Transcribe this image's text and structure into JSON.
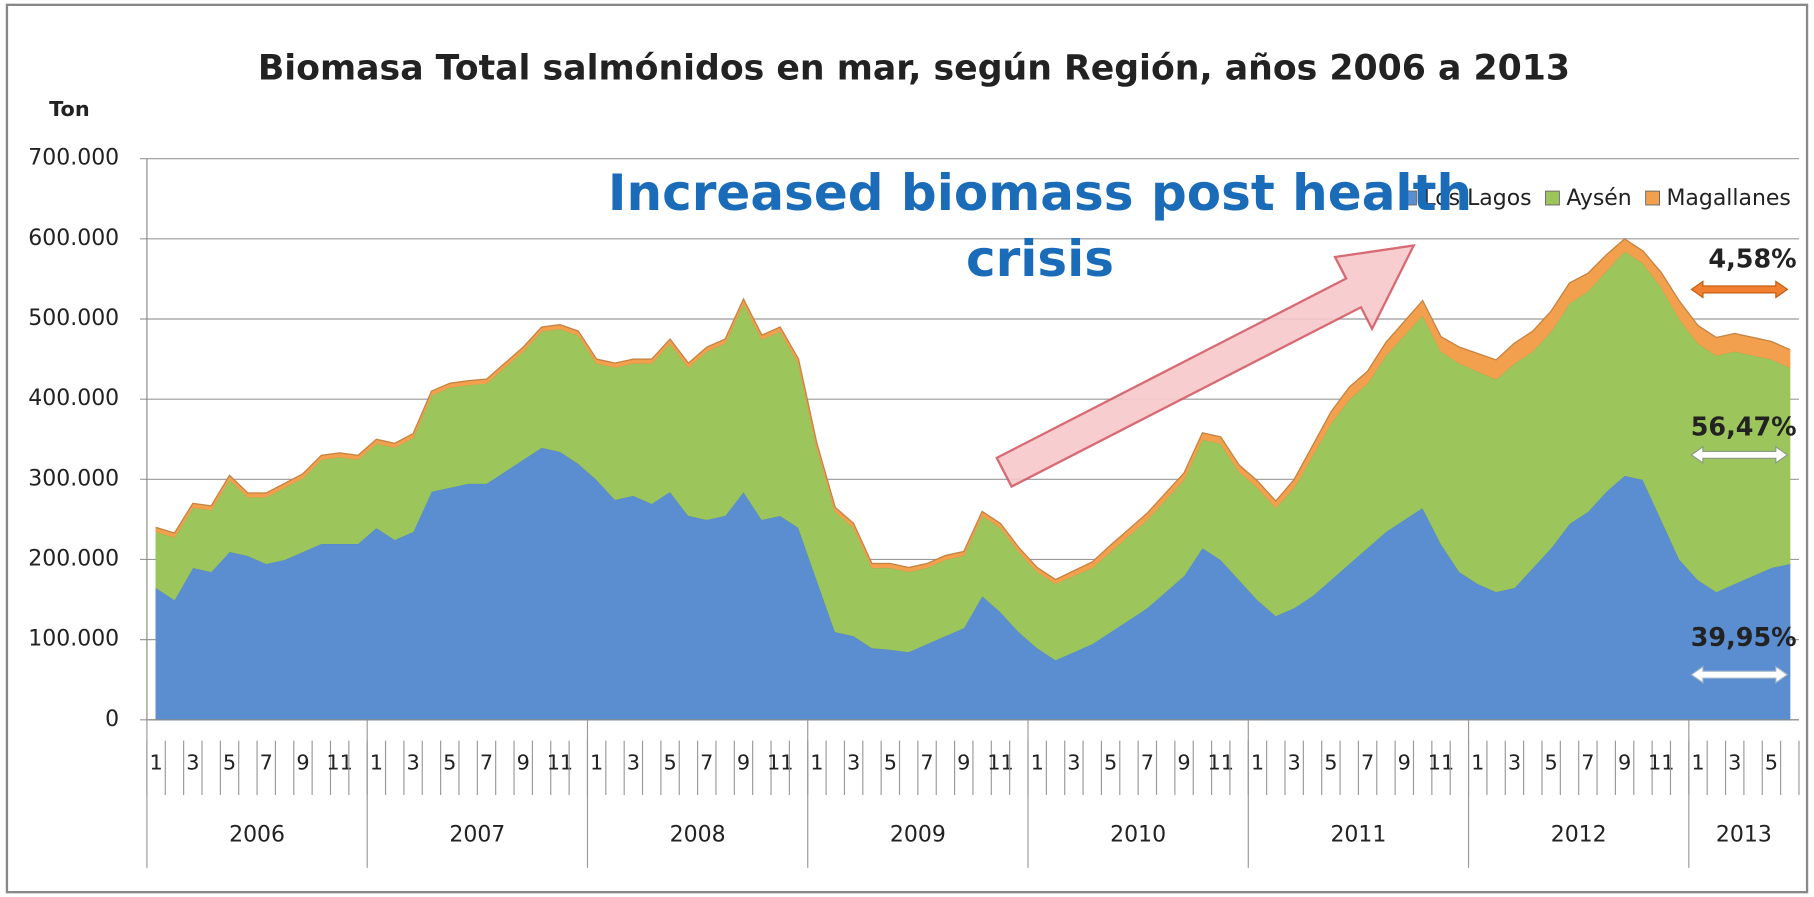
{
  "chart_data": {
    "type": "stacked_area",
    "title": "Biomasa Total salmónidos en mar, según Región, años 2006 a 2013",
    "y_label": "Ton",
    "categories": [
      "1",
      null,
      "3",
      null,
      "5",
      null,
      "7",
      null,
      "9",
      null,
      "11",
      null,
      "1",
      null,
      "3",
      null,
      "5",
      null,
      "7",
      null,
      "9",
      null,
      "11",
      null,
      "1",
      null,
      "3",
      null,
      "5",
      null,
      "7",
      null,
      "9",
      null,
      "11",
      null,
      "1",
      null,
      "3",
      null,
      "5",
      null,
      "7",
      null,
      "9",
      null,
      "11",
      null,
      "1",
      null,
      "3",
      null,
      "5",
      null,
      "7",
      null,
      "9",
      null,
      "11",
      null,
      "1",
      null,
      "3",
      null,
      "5",
      null,
      "7",
      null,
      "9",
      null,
      "11",
      null,
      "1",
      null,
      "3",
      null,
      "5",
      null,
      "7",
      null,
      "9",
      null,
      "11",
      null,
      "1",
      null,
      "3",
      null,
      "5",
      null
    ],
    "years": [
      "2006",
      "2007",
      "2008",
      "2009",
      "2010",
      "2011",
      "2012",
      "2013"
    ],
    "series": [
      {
        "name": "Los Lagos",
        "color": "#5b8ed1",
        "values": [
          165000,
          150000,
          190000,
          185000,
          210000,
          205000,
          195000,
          200000,
          210000,
          220000,
          220000,
          220000,
          240000,
          225000,
          235000,
          285000,
          290000,
          295000,
          295000,
          310000,
          325000,
          340000,
          335000,
          320000,
          300000,
          275000,
          280000,
          270000,
          285000,
          255000,
          250000,
          255000,
          285000,
          250000,
          255000,
          240000,
          175000,
          110000,
          105000,
          90000,
          88000,
          85000,
          95000,
          105000,
          115000,
          155000,
          135000,
          110000,
          90000,
          75000,
          85000,
          95000,
          110000,
          125000,
          140000,
          160000,
          180000,
          215000,
          200000,
          175000,
          150000,
          130000,
          140000,
          155000,
          175000,
          195000,
          215000,
          235000,
          250000,
          265000,
          220000,
          185000,
          170000,
          160000,
          165000,
          190000,
          215000,
          245000,
          260000,
          285000,
          305000,
          300000,
          250000,
          200000,
          175000,
          160000,
          170000,
          180000,
          190000,
          195000
        ]
      },
      {
        "name": "Aysén",
        "color": "#9cc65b",
        "values": [
          70000,
          78000,
          75000,
          77000,
          90000,
          73000,
          83000,
          90000,
          92000,
          105000,
          108000,
          105000,
          105000,
          115000,
          117000,
          120000,
          125000,
          123000,
          125000,
          130000,
          135000,
          145000,
          153000,
          160000,
          145000,
          165000,
          165000,
          175000,
          185000,
          185000,
          210000,
          215000,
          235000,
          225000,
          230000,
          205000,
          165000,
          150000,
          135000,
          100000,
          102000,
          100000,
          95000,
          95000,
          90000,
          100000,
          105000,
          100000,
          95000,
          95000,
          95000,
          95000,
          100000,
          105000,
          110000,
          115000,
          120000,
          135000,
          145000,
          135000,
          140000,
          135000,
          150000,
          175000,
          195000,
          205000,
          205000,
          220000,
          230000,
          240000,
          240000,
          260000,
          265000,
          265000,
          280000,
          270000,
          270000,
          275000,
          275000,
          275000,
          280000,
          270000,
          290000,
          300000,
          295000,
          295000,
          290000,
          275000,
          260000,
          245000
        ]
      },
      {
        "name": "Magallanes",
        "color": "#f2a04e",
        "values": [
          5000,
          5000,
          5000,
          5000,
          5000,
          5000,
          5000,
          5000,
          5000,
          5000,
          5000,
          5000,
          5000,
          5000,
          5000,
          5000,
          5000,
          5000,
          5000,
          5000,
          5000,
          5000,
          5000,
          5000,
          5000,
          5000,
          5000,
          5000,
          5000,
          5000,
          5000,
          5000,
          5000,
          5000,
          5000,
          5000,
          5000,
          5000,
          5000,
          5000,
          5000,
          5000,
          5000,
          5000,
          5000,
          5000,
          5000,
          5000,
          5000,
          5000,
          6000,
          7000,
          8000,
          8000,
          8000,
          8000,
          8000,
          8000,
          8000,
          8000,
          8000,
          8000,
          10000,
          12000,
          14000,
          15000,
          15000,
          16000,
          17000,
          18000,
          18000,
          20000,
          22000,
          24000,
          25000,
          25000,
          25000,
          25000,
          22000,
          20000,
          15000,
          15000,
          18000,
          22000,
          22000,
          22000,
          22000,
          22000,
          22000,
          22000
        ]
      }
    ],
    "ylim": [
      0,
      700000
    ],
    "yticks": [
      {
        "value": 0,
        "label": "0"
      },
      {
        "value": 100000,
        "label": "100.000"
      },
      {
        "value": 200000,
        "label": "200.000"
      },
      {
        "value": 300000,
        "label": "300.000"
      },
      {
        "value": 400000,
        "label": "400.000"
      },
      {
        "value": 500000,
        "label": "500.000"
      },
      {
        "value": 600000,
        "label": "600.000"
      },
      {
        "value": 700000,
        "label": "700.000"
      }
    ],
    "grid": true,
    "legend": "top-right",
    "annotation": "Increased biomass post health crisis",
    "shares": [
      "4,58%",
      "56,47%",
      "39,95%"
    ]
  }
}
